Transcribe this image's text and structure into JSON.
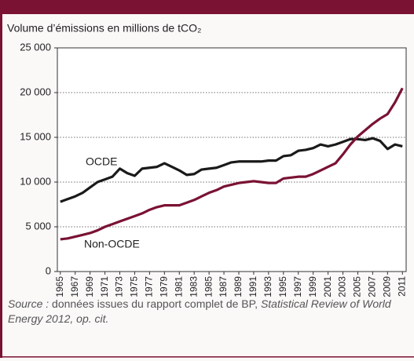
{
  "chart_data": {
    "type": "line",
    "title": "Volume d’émissions en millions de tCO₂",
    "x": [
      1965,
      1966,
      1967,
      1968,
      1969,
      1970,
      1971,
      1972,
      1973,
      1974,
      1975,
      1976,
      1977,
      1978,
      1979,
      1980,
      1981,
      1982,
      1983,
      1984,
      1985,
      1986,
      1987,
      1988,
      1989,
      1990,
      1991,
      1992,
      1993,
      1994,
      1995,
      1996,
      1997,
      1998,
      1999,
      2000,
      2001,
      2002,
      2003,
      2004,
      2005,
      2006,
      2007,
      2008,
      2009,
      2010,
      2011
    ],
    "series": [
      {
        "name": "OCDE",
        "color": "#1a1a1a",
        "values": [
          7800,
          8100,
          8400,
          8800,
          9400,
          10000,
          10300,
          10600,
          11500,
          11000,
          10700,
          11500,
          11600,
          11700,
          12100,
          11700,
          11300,
          10800,
          10900,
          11400,
          11500,
          11600,
          11900,
          12200,
          12300,
          12300,
          12300,
          12300,
          12400,
          12400,
          12900,
          13000,
          13500,
          13600,
          13800,
          14200,
          14000,
          14200,
          14500,
          14800,
          14800,
          14700,
          14900,
          14600,
          13700,
          14200,
          14000
        ]
      },
      {
        "name": "Non-OCDE",
        "color": "#7a1233",
        "values": [
          3600,
          3700,
          3900,
          4100,
          4300,
          4600,
          5000,
          5300,
          5600,
          5900,
          6200,
          6500,
          6900,
          7200,
          7400,
          7400,
          7400,
          7700,
          8000,
          8400,
          8800,
          9100,
          9500,
          9700,
          9900,
          10000,
          10100,
          10000,
          9900,
          9900,
          10400,
          10500,
          10600,
          10600,
          10900,
          11300,
          11700,
          12100,
          13100,
          14200,
          15100,
          15800,
          16500,
          17100,
          17600,
          18900,
          20500
        ]
      }
    ],
    "xlim": [
      1964.6,
      2011.5
    ],
    "xticks": [
      1965,
      1967,
      1969,
      1971,
      1973,
      1975,
      1977,
      1979,
      1981,
      1983,
      1985,
      1987,
      1989,
      1991,
      1993,
      1995,
      1997,
      1999,
      2001,
      2003,
      2005,
      2007,
      2009,
      2011
    ],
    "ylim": [
      0,
      25000
    ],
    "yticks": [
      0,
      {
        "value": 5000,
        "label": "5 000"
      },
      {
        "value": 10000,
        "label": "10 000"
      },
      {
        "value": 15000,
        "label": "15 000"
      },
      {
        "value": 20000,
        "label": "20 000"
      },
      {
        "value": 25000,
        "label": "25 000"
      }
    ],
    "grid": true,
    "source_label": "Source :",
    "source_text": "données issues du rapport complet de BP,",
    "source_title": "Statistical Review of World Energy 2012, op. cit."
  }
}
